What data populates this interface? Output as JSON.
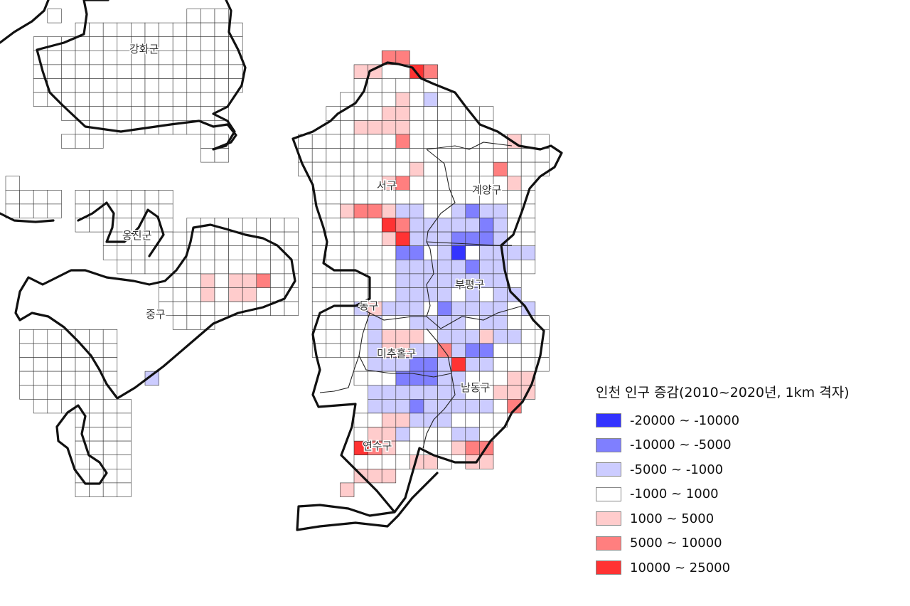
{
  "legend": {
    "title": "인천 인구 증감(2010~2020년, 1km 격자)",
    "classes": [
      {
        "label": "-20000 ~ -10000",
        "color": "#3333ff"
      },
      {
        "label": "-10000 ~ -5000",
        "color": "#7f7fff"
      },
      {
        "label": "-5000 ~ -1000",
        "color": "#ccccff"
      },
      {
        "label": "-1000 ~ 1000",
        "color": "#ffffff"
      },
      {
        "label": "1000 ~ 5000",
        "color": "#ffcccc"
      },
      {
        "label": "5000 ~ 10000",
        "color": "#ff7f7f"
      },
      {
        "label": "10000 ~ 25000",
        "color": "#ff3333"
      }
    ]
  },
  "districts": [
    "강화군",
    "서구",
    "계양구",
    "옹진군",
    "부평구",
    "중구",
    "동구",
    "미추홀구",
    "남동구",
    "연수구"
  ]
}
